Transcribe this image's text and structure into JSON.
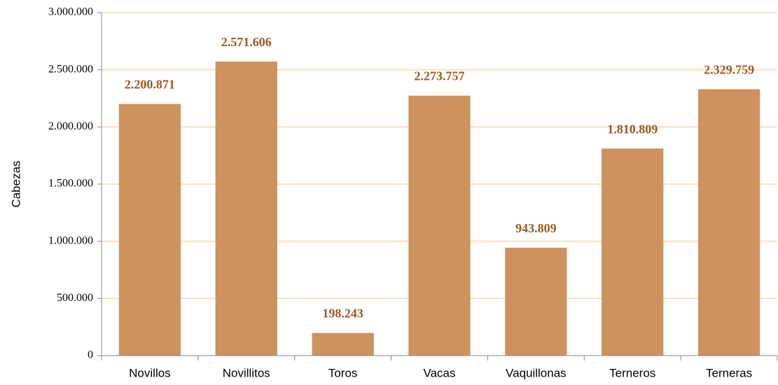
{
  "chart_data": {
    "type": "bar",
    "y_label": "Cabezas",
    "categories": [
      "Novillos",
      "Novillitos",
      "Toros",
      "Vacas",
      "Vaquillonas",
      "Terneros",
      "Terneras"
    ],
    "values": [
      2200871,
      2571606,
      198243,
      2273757,
      943809,
      1810809,
      2329759
    ],
    "value_labels": [
      "2.200.871",
      "2.571.606",
      "198.243",
      "2.273.757",
      "943.809",
      "1.810.809",
      "2.329.759"
    ],
    "color": "#cd925d",
    "label_color": "#9a5a1e",
    "grid_color": "#f8d9b2",
    "ylim": [
      0,
      3000000
    ],
    "yticks": [
      0,
      {
        "value": 500000,
        "label": "500.000"
      },
      {
        "value": 1000000,
        "label": "1.000.000"
      },
      {
        "value": 1500000,
        "label": "1.500.000"
      },
      {
        "value": 2000000,
        "label": "2.000.000"
      },
      {
        "value": 2500000,
        "label": "2.500.000"
      },
      {
        "value": 3000000,
        "label": "3.000.000"
      }
    ],
    "grid": true
  }
}
